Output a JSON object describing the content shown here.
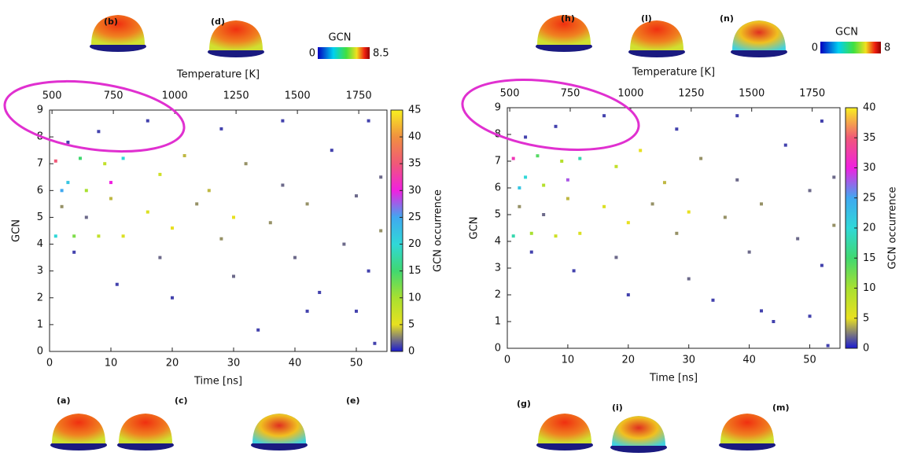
{
  "chart_data": [
    {
      "type": "scatter",
      "xlabel": "Time [ns]",
      "ylabel": "GCN",
      "x2label": "Temperature [K]",
      "xlim": [
        0,
        55
      ],
      "xticks": [
        0,
        10,
        20,
        30,
        40,
        50
      ],
      "x2lim": [
        490,
        1865
      ],
      "x2ticks": [
        500,
        750,
        1000,
        1250,
        1500,
        1750
      ],
      "ylim": [
        0,
        9
      ],
      "yticks": [
        0,
        1,
        2,
        3,
        4,
        5,
        6,
        7,
        8,
        9
      ],
      "x": [
        1,
        4,
        8,
        12,
        2,
        6,
        10,
        3,
        1,
        5,
        9,
        12,
        2,
        6,
        10,
        4,
        8,
        11,
        3,
        16,
        18,
        20,
        22,
        24,
        16,
        20,
        18,
        26,
        28,
        30,
        32,
        34,
        30,
        28,
        36,
        38,
        40,
        42,
        44,
        46,
        38,
        42,
        48,
        50,
        52,
        54,
        53,
        50,
        52,
        54
      ],
      "values": [
        4.3,
        4.3,
        4.3,
        4.3,
        6.0,
        6.0,
        6.3,
        6.3,
        7.1,
        7.2,
        7.0,
        7.2,
        5.4,
        5.0,
        5.7,
        3.7,
        8.2,
        2.5,
        7.8,
        5.2,
        6.6,
        4.6,
        7.3,
        5.5,
        8.6,
        2.0,
        3.5,
        6.0,
        4.2,
        5.0,
        7.0,
        0.8,
        2.8,
        8.3,
        4.8,
        6.2,
        3.5,
        5.5,
        2.2,
        7.5,
        8.6,
        1.5,
        4.0,
        5.8,
        3.0,
        6.5,
        0.3,
        1.5,
        8.6,
        4.5
      ],
      "occurrence": [
        20,
        12,
        8,
        6,
        25,
        10,
        30,
        22,
        35,
        15,
        8,
        20,
        3,
        2,
        4,
        1,
        1,
        1,
        1,
        6,
        7,
        5,
        4,
        3,
        1,
        1,
        2,
        4,
        3,
        5,
        3,
        1,
        2,
        1,
        3,
        2,
        2,
        3,
        1,
        1,
        1,
        1,
        2,
        2,
        1,
        2,
        1,
        1,
        1,
        3
      ],
      "colorbar": {
        "label": "GCN occurrence",
        "lim": [
          0,
          45
        ],
        "ticks": [
          0,
          5,
          10,
          15,
          20,
          25,
          30,
          35,
          40,
          45
        ]
      },
      "colormap": [
        "#1a1ad0",
        "#e8e020",
        "#a8e030",
        "#40d870",
        "#30d8d8",
        "#40a8f0",
        "#f020e0",
        "#f05878",
        "#f09040",
        "#f8f020"
      ],
      "gcn_scale": {
        "title": "GCN",
        "min": 0,
        "max": 8.5
      },
      "insets": [
        "(b)",
        "(d)",
        "(a)",
        "(c)",
        "(e)"
      ]
    },
    {
      "type": "scatter",
      "xlabel": "Time [ns]",
      "ylabel": "GCN",
      "x2label": "Temperature [K]",
      "xlim": [
        0,
        55
      ],
      "xticks": [
        0,
        10,
        20,
        30,
        40,
        50
      ],
      "x2lim": [
        490,
        1865
      ],
      "x2ticks": [
        500,
        750,
        1000,
        1250,
        1500,
        1750
      ],
      "ylim": [
        0,
        9
      ],
      "yticks": [
        0,
        1,
        2,
        3,
        4,
        5,
        6,
        7,
        8,
        9
      ],
      "x": [
        1,
        4,
        8,
        12,
        2,
        6,
        10,
        3,
        1,
        5,
        9,
        12,
        2,
        6,
        10,
        4,
        8,
        11,
        3,
        16,
        18,
        20,
        22,
        24,
        16,
        20,
        18,
        26,
        28,
        30,
        32,
        34,
        30,
        28,
        36,
        38,
        40,
        42,
        44,
        46,
        38,
        42,
        48,
        50,
        52,
        54,
        53,
        50,
        52,
        54
      ],
      "values": [
        4.2,
        4.3,
        4.2,
        4.3,
        6.0,
        6.1,
        6.3,
        6.4,
        7.1,
        7.2,
        7.0,
        7.1,
        5.3,
        5.0,
        5.6,
        3.6,
        8.3,
        2.9,
        7.9,
        5.3,
        6.8,
        4.7,
        7.4,
        5.4,
        8.7,
        2.0,
        3.4,
        6.2,
        4.3,
        5.1,
        7.1,
        1.8,
        2.6,
        8.2,
        4.9,
        6.3,
        3.6,
        5.4,
        1.0,
        7.6,
        8.7,
        1.4,
        4.1,
        5.9,
        3.1,
        6.4,
        0.1,
        1.2,
        8.5,
        4.6
      ],
      "occurrence": [
        18,
        10,
        7,
        6,
        22,
        9,
        28,
        20,
        32,
        14,
        9,
        18,
        3,
        2,
        4,
        1,
        1,
        1,
        1,
        6,
        8,
        5,
        5,
        3,
        1,
        1,
        2,
        4,
        3,
        5,
        3,
        1,
        2,
        1,
        3,
        2,
        2,
        3,
        1,
        1,
        1,
        1,
        2,
        2,
        1,
        2,
        1,
        1,
        1,
        3
      ],
      "colorbar": {
        "label": "GCN occurrence",
        "lim": [
          0,
          40
        ],
        "ticks": [
          0,
          5,
          10,
          15,
          20,
          25,
          30,
          35,
          40
        ]
      },
      "colormap": [
        "#1a1ad0",
        "#e8e020",
        "#a8e030",
        "#40d870",
        "#30d8d8",
        "#40a8f0",
        "#f020e0",
        "#f05878",
        "#f8f020"
      ],
      "gcn_scale": {
        "title": "GCN",
        "min": 0,
        "max": 8
      },
      "insets": [
        "(h)",
        "(l)",
        "(n)",
        "(g)",
        "(i)",
        "(m)"
      ]
    }
  ]
}
